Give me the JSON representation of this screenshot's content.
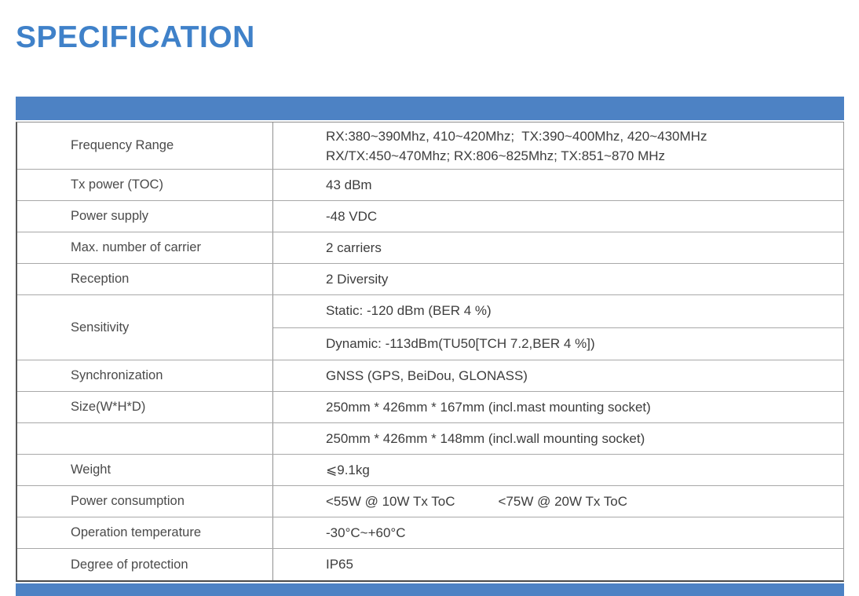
{
  "page": {
    "title": "SPECIFICATION"
  },
  "theme": {
    "accent_blue": "#4d82c4",
    "title_blue": "#3f81c9"
  },
  "table": {
    "rows": [
      {
        "label": "Frequency Range",
        "line1": "RX:380~390Mhz, 410~420Mhz;  TX:390~400Mhz, 420~430MHz",
        "line2": "RX/TX:450~470Mhz; RX:806~825Mhz; TX:851~870 MHz"
      },
      {
        "label": "Tx power (TOC)",
        "value": "43 dBm"
      },
      {
        "label": "Power supply",
        "value": "-48 VDC"
      },
      {
        "label": "Max. number of carrier",
        "value": "2 carriers"
      },
      {
        "label": "Reception",
        "value": "2 Diversity"
      },
      {
        "label": "Sensitivity",
        "value_static": "Static: -120 dBm (BER 4 %)",
        "value_dynamic": "Dynamic: -113dBm(TU50[TCH 7.2,BER 4 %])"
      },
      {
        "label": "Synchronization",
        "value": "GNSS (GPS, BeiDou, GLONASS)"
      },
      {
        "label": "Size(W*H*D)",
        "value": "250mm * 426mm * 167mm (incl.mast mounting socket)"
      },
      {
        "label": "",
        "value": "250mm * 426mm * 148mm (incl.wall mounting socket)"
      },
      {
        "label": "Weight",
        "value": "⩽9.1kg"
      },
      {
        "label": "Power consumption",
        "value1": "<55W @ 10W Tx ToC",
        "value2": "<75W @ 20W Tx ToC"
      },
      {
        "label": "Operation temperature",
        "value": "-30°C~+60°C"
      },
      {
        "label": "Degree of protection",
        "value": "IP65"
      }
    ]
  }
}
